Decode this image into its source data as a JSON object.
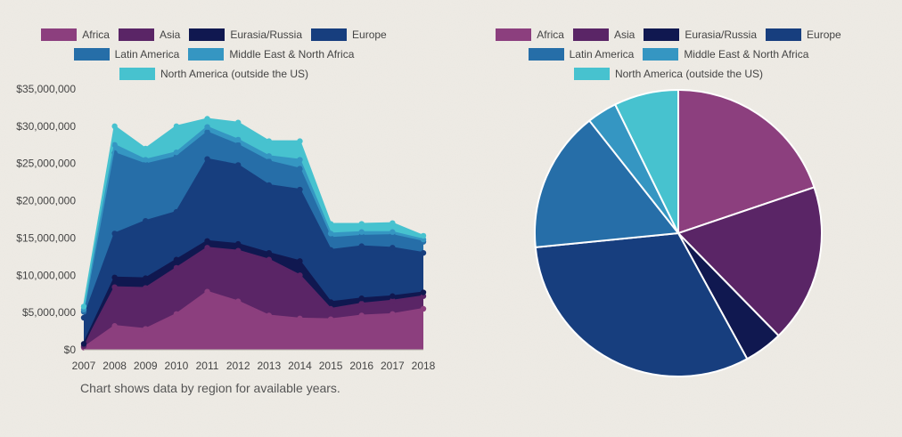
{
  "caption": "Chart shows data by region for available years.",
  "chart_data": [
    {
      "type": "area",
      "stacked": true,
      "categories": [
        "2007",
        "2008",
        "2009",
        "2010",
        "2011",
        "2012",
        "2013",
        "2014",
        "2015",
        "2016",
        "2017",
        "2018"
      ],
      "y_tick_labels": [
        "$0",
        "$5,000,000",
        "$10,000,000",
        "$15,000,000",
        "$20,000,000",
        "$25,000,000",
        "$30,000,000",
        "$35,000,000"
      ],
      "ylim": [
        0,
        35000000
      ],
      "grid": false,
      "legend_position": "top",
      "series": [
        {
          "name": "Africa",
          "color": "#8c3f7e",
          "values": [
            300000,
            3200000,
            2800000,
            4800000,
            7800000,
            6500000,
            4600000,
            4200000,
            4100000,
            4600000,
            4800000,
            5500000
          ]
        },
        {
          "name": "Asia",
          "color": "#5a2566",
          "values": [
            200000,
            5200000,
            5500000,
            6200000,
            5900000,
            6800000,
            7500000,
            5800000,
            1400000,
            1600000,
            1800000,
            1700000
          ]
        },
        {
          "name": "Eurasia/Russia",
          "color": "#101850",
          "values": [
            300000,
            1300000,
            1300000,
            1100000,
            900000,
            900000,
            900000,
            1900000,
            900000,
            700000,
            600000,
            500000
          ]
        },
        {
          "name": "Europe",
          "color": "#173e7e",
          "values": [
            3500000,
            5900000,
            7700000,
            6400000,
            11000000,
            10600000,
            9100000,
            9600000,
            7000000,
            7000000,
            6500000,
            5300000
          ]
        },
        {
          "name": "Latin America",
          "color": "#266ea8",
          "values": [
            800000,
            10800000,
            7600000,
            7400000,
            3600000,
            2700000,
            3200000,
            2800000,
            1600000,
            1400000,
            1700000,
            1500000
          ]
        },
        {
          "name": "Middle East & North Africa",
          "color": "#3596c2",
          "values": [
            300000,
            1100000,
            600000,
            600000,
            700000,
            700000,
            700000,
            1200000,
            600000,
            500000,
            400000,
            300000
          ]
        },
        {
          "name": "North America (outside the US)",
          "color": "#47c2cf",
          "values": [
            400000,
            2500000,
            1500000,
            3500000,
            1100000,
            2300000,
            2000000,
            2500000,
            1300000,
            1100000,
            1200000,
            500000
          ]
        }
      ]
    },
    {
      "type": "pie",
      "legend_position": "top",
      "slices": [
        {
          "name": "Africa",
          "color": "#8c3f7e",
          "value": 20.5
        },
        {
          "name": "Asia",
          "color": "#5a2566",
          "value": 18.5
        },
        {
          "name": "Eurasia/Russia",
          "color": "#101850",
          "value": 4.5
        },
        {
          "name": "Europe",
          "color": "#173e7e",
          "value": 32.5
        },
        {
          "name": "Latin America",
          "color": "#266ea8",
          "value": 16.5
        },
        {
          "name": "Middle East & North Africa",
          "color": "#3596c2",
          "value": 3.5
        },
        {
          "name": "North America (outside the US)",
          "color": "#47c2cf",
          "value": 7.5
        }
      ]
    }
  ]
}
